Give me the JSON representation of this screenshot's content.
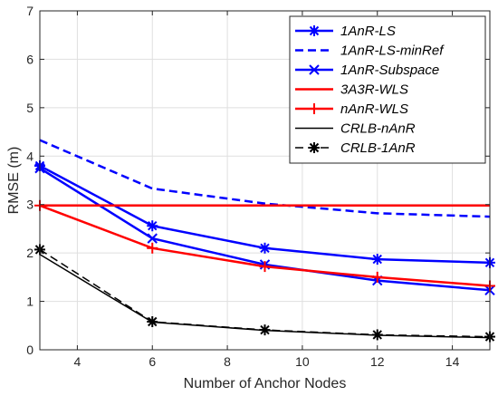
{
  "chart_data": {
    "type": "line",
    "xlabel": "Number of Anchor Nodes",
    "ylabel": "RMSE (m)",
    "xlim": [
      3,
      15
    ],
    "ylim": [
      0,
      7
    ],
    "xticks": [
      4,
      6,
      8,
      10,
      12,
      14
    ],
    "yticks": [
      0,
      1,
      2,
      3,
      4,
      5,
      6,
      7
    ],
    "xtick_labels": [
      "4",
      "6",
      "8",
      "10",
      "12",
      "14"
    ],
    "ytick_labels": [
      "0",
      "1",
      "2",
      "3",
      "4",
      "5",
      "6",
      "7"
    ],
    "grid": true,
    "legend_position": "top-right",
    "series": [
      {
        "name": "1AnR-LS",
        "color": "#0000ff",
        "line": "solid",
        "marker": "asterisk",
        "x": [
          3,
          6,
          9,
          12,
          15
        ],
        "y": [
          3.8,
          2.56,
          2.1,
          1.87,
          1.8
        ]
      },
      {
        "name": "1AnR-LS-minRef",
        "color": "#0000ff",
        "line": "dashed",
        "marker": "none",
        "x": [
          3,
          6,
          9,
          12,
          15
        ],
        "y": [
          4.33,
          3.33,
          3.02,
          2.82,
          2.75
        ]
      },
      {
        "name": "1AnR-Subspace",
        "color": "#0000ff",
        "line": "solid",
        "marker": "x",
        "x": [
          3,
          6,
          9,
          12,
          15
        ],
        "y": [
          3.75,
          2.3,
          1.76,
          1.43,
          1.23
        ]
      },
      {
        "name": "3A3R-WLS",
        "color": "#ff0000",
        "line": "solid",
        "marker": "none",
        "x": [
          3,
          6,
          9,
          12,
          15
        ],
        "y": [
          2.98,
          2.98,
          2.98,
          2.98,
          2.98
        ]
      },
      {
        "name": "nAnR-WLS",
        "color": "#ff0000",
        "line": "solid",
        "marker": "plus",
        "x": [
          3,
          6,
          9,
          12,
          15
        ],
        "y": [
          2.98,
          2.1,
          1.72,
          1.5,
          1.32
        ]
      },
      {
        "name": "CRLB-nAnR",
        "color": "#000000",
        "line": "solid",
        "marker": "none",
        "x": [
          3,
          6,
          9,
          12,
          15
        ],
        "y": [
          1.97,
          0.57,
          0.4,
          0.3,
          0.25
        ]
      },
      {
        "name": "CRLB-1AnR",
        "color": "#000000",
        "line": "dashed",
        "marker": "asterisk",
        "x": [
          3,
          6,
          9,
          12,
          15
        ],
        "y": [
          2.07,
          0.58,
          0.41,
          0.31,
          0.27
        ]
      }
    ]
  }
}
